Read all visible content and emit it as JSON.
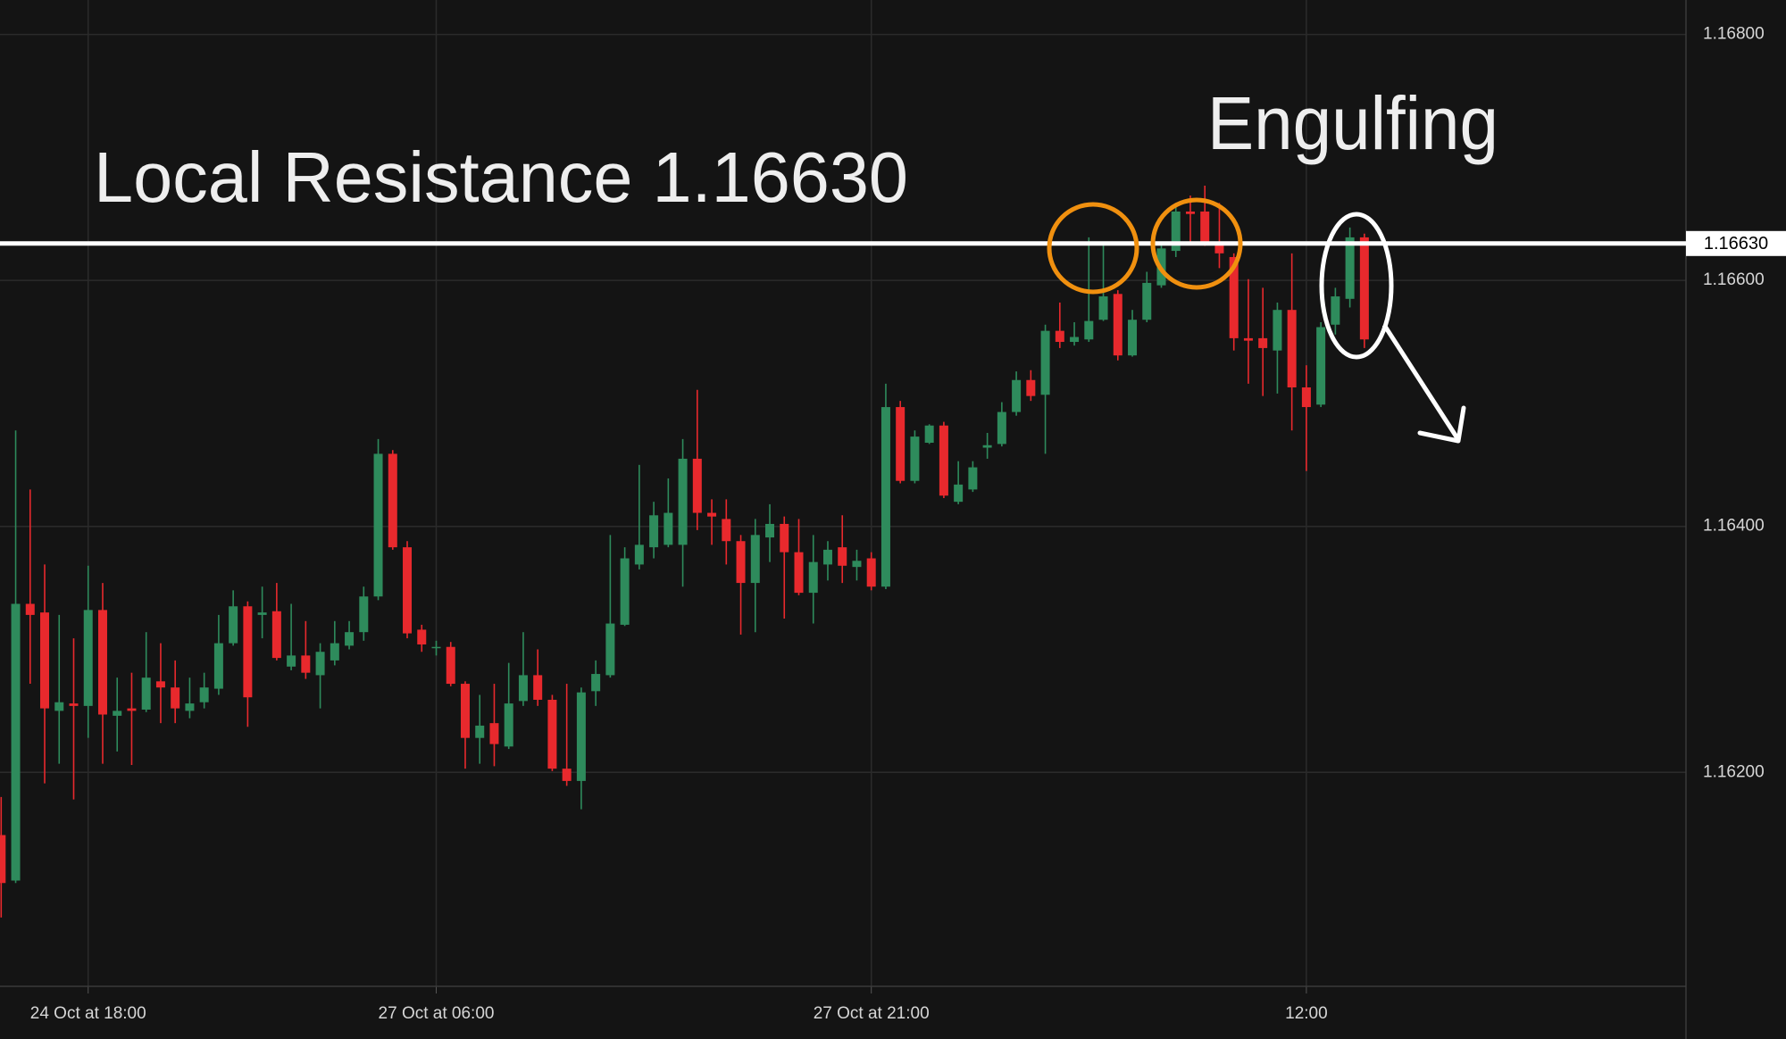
{
  "chart_data": {
    "type": "candlestick",
    "categories": [
      null,
      null,
      null,
      null,
      null,
      null,
      "24 Oct at 18:00",
      null,
      null,
      null,
      null,
      null,
      null,
      null,
      null,
      null,
      null,
      null,
      null,
      null,
      null,
      null,
      null,
      null,
      null,
      null,
      null,
      null,
      null,
      null,
      "27 Oct at 06:00",
      null,
      null,
      null,
      null,
      null,
      null,
      null,
      null,
      null,
      null,
      null,
      null,
      null,
      null,
      null,
      null,
      null,
      null,
      null,
      null,
      null,
      null,
      null,
      null,
      null,
      null,
      null,
      null,
      null,
      "27 Oct at 21:00",
      null,
      null,
      null,
      null,
      null,
      null,
      null,
      null,
      null,
      null,
      null,
      null,
      null,
      null,
      null,
      null,
      null,
      null,
      null,
      null,
      null,
      null,
      null,
      null,
      null,
      null,
      null,
      null,
      null,
      "12:00",
      null,
      null,
      null,
      null
    ],
    "open": [
      1.16149,
      1.16112,
      1.16337,
      1.1633,
      1.1625,
      1.16256,
      1.16254,
      1.16332,
      1.16246,
      1.16252,
      1.16251,
      1.16274,
      1.16269,
      1.1625,
      1.16257,
      1.16268,
      1.16305,
      1.16335,
      1.16328,
      1.16331,
      1.16286,
      1.16295,
      1.16279,
      1.16291,
      1.16303,
      1.16314,
      1.16343,
      1.16459,
      1.16383,
      1.16316,
      1.16302,
      1.16302,
      1.16272,
      1.16228,
      1.1624,
      1.16221,
      1.16258,
      1.16279,
      1.16259,
      1.16203,
      1.16193,
      1.16266,
      1.16279,
      1.1632,
      1.16369,
      1.16383,
      1.16385,
      1.16385,
      1.16455,
      1.16411,
      1.16406,
      1.16388,
      1.16354,
      1.16391,
      1.16402,
      1.16379,
      1.16346,
      1.16369,
      1.16383,
      1.16367,
      1.16374,
      1.16351,
      1.16497,
      1.16437,
      1.16468,
      1.16482,
      1.1642,
      1.1643,
      1.16464,
      1.16467,
      1.16493,
      1.16519,
      1.16507,
      1.16559,
      1.1655,
      1.16552,
      1.16568,
      1.16589,
      1.16539,
      1.16568,
      1.16596,
      1.16624,
      1.16656,
      1.16656,
      1.16629,
      1.16619,
      1.16553,
      1.16553,
      1.16543,
      1.16576,
      1.16513,
      1.16499,
      1.16564,
      1.16585,
      1.16635
    ],
    "high": [
      1.1618,
      1.16478,
      1.1643,
      1.16369,
      1.16328,
      1.16309,
      1.16368,
      1.16354,
      1.16277,
      1.16281,
      1.16314,
      1.16305,
      1.16291,
      1.16277,
      1.16281,
      1.16328,
      1.16348,
      1.16339,
      1.16351,
      1.16354,
      1.16337,
      1.16323,
      1.16305,
      1.16323,
      1.16323,
      1.16351,
      1.16471,
      1.16462,
      1.16388,
      1.1632,
      1.16307,
      1.16306,
      1.16274,
      1.16263,
      1.16272,
      1.16289,
      1.16314,
      1.163,
      1.16263,
      1.16272,
      1.16269,
      1.16291,
      1.16393,
      1.16383,
      1.1645,
      1.1642,
      1.16439,
      1.16471,
      1.16511,
      1.16422,
      1.16422,
      1.16393,
      1.16406,
      1.16418,
      1.16408,
      1.16406,
      1.16393,
      1.16388,
      1.16409,
      1.16381,
      1.16379,
      1.16516,
      1.16502,
      1.16478,
      1.16483,
      1.16485,
      1.16453,
      1.16453,
      1.16476,
      1.16501,
      1.16526,
      1.16527,
      1.16564,
      1.16582,
      1.16566,
      1.16635,
      1.16631,
      1.16592,
      1.16576,
      1.16607,
      1.16631,
      1.16663,
      1.16669,
      1.16677,
      1.16663,
      1.16622,
      1.16601,
      1.16594,
      1.16582,
      1.16622,
      1.16531,
      1.16566,
      1.16594,
      1.16643,
      1.16638
    ],
    "low": [
      1.16082,
      1.1611,
      1.16272,
      1.16191,
      1.16207,
      1.16178,
      1.16228,
      1.16207,
      1.16217,
      1.16206,
      1.16249,
      1.1624,
      1.1624,
      1.16244,
      1.16252,
      1.16263,
      1.16303,
      1.16237,
      1.16309,
      1.16291,
      1.16283,
      1.16276,
      1.16252,
      1.16287,
      1.163,
      1.16307,
      1.1634,
      1.16381,
      1.16309,
      1.16298,
      1.16295,
      1.1627,
      1.16203,
      1.16207,
      1.16205,
      1.16219,
      1.16254,
      1.16254,
      1.16201,
      1.16189,
      1.1617,
      1.16254,
      1.16277,
      1.16319,
      1.16365,
      1.16374,
      1.16383,
      1.16351,
      1.16397,
      1.16385,
      1.16369,
      1.16312,
      1.16314,
      1.16371,
      1.16325,
      1.16344,
      1.16321,
      1.16356,
      1.16354,
      1.16356,
      1.16348,
      1.16349,
      1.16435,
      1.16435,
      1.16467,
      1.16423,
      1.16418,
      1.16428,
      1.16455,
      1.16465,
      1.1649,
      1.16502,
      1.16459,
      1.16545,
      1.16547,
      1.1655,
      1.16567,
      1.16535,
      1.16538,
      1.16566,
      1.16594,
      1.16619,
      1.16629,
      1.16628,
      1.1661,
      1.16543,
      1.16516,
      1.16506,
      1.16508,
      1.16478,
      1.16445,
      1.16497,
      1.16556,
      1.16578,
      1.16545
    ],
    "close": [
      1.1611,
      1.16337,
      1.16328,
      1.16252,
      1.16257,
      1.16254,
      1.16332,
      1.16247,
      1.1625,
      1.1625,
      1.16277,
      1.16269,
      1.16252,
      1.16256,
      1.16269,
      1.16305,
      1.16335,
      1.16261,
      1.1633,
      1.16293,
      1.16295,
      1.16281,
      1.16298,
      1.16305,
      1.16314,
      1.16343,
      1.16459,
      1.16383,
      1.16313,
      1.16304,
      1.16302,
      1.16272,
      1.16228,
      1.16238,
      1.16223,
      1.16256,
      1.16279,
      1.16259,
      1.16203,
      1.16193,
      1.16265,
      1.1628,
      1.16321,
      1.16374,
      1.16385,
      1.16409,
      1.16411,
      1.16455,
      1.16411,
      1.16408,
      1.16388,
      1.16354,
      1.16393,
      1.16402,
      1.16379,
      1.16346,
      1.16371,
      1.16381,
      1.16368,
      1.16372,
      1.16351,
      1.16497,
      1.16437,
      1.16473,
      1.16482,
      1.16425,
      1.16434,
      1.16448,
      1.16466,
      1.16493,
      1.16519,
      1.16506,
      1.16559,
      1.1655,
      1.16554,
      1.16567,
      1.16587,
      1.16539,
      1.16568,
      1.16598,
      1.16626,
      1.16656,
      1.16654,
      1.16631,
      1.16622,
      1.16553,
      1.16551,
      1.16545,
      1.16576,
      1.16513,
      1.16497,
      1.16562,
      1.16587,
      1.16635,
      1.16552
    ],
    "up_color": "#2e8b5c",
    "down_color": "#e8292d",
    "ylim": [
      1.16026,
      1.16828
    ],
    "yticks": [
      {
        "value": 1.162,
        "label": "1.16200"
      },
      {
        "value": 1.164,
        "label": "1.16400"
      },
      {
        "value": 1.166,
        "label": "1.16600"
      },
      {
        "value": 1.168,
        "label": "1.16800"
      }
    ],
    "grid": true,
    "lines": [
      {
        "value": 1.1663,
        "label": "1.16630",
        "color": "#ffffff"
      }
    ],
    "annotations": [
      "Local Resistance 1.16630",
      "Engulfing"
    ]
  }
}
